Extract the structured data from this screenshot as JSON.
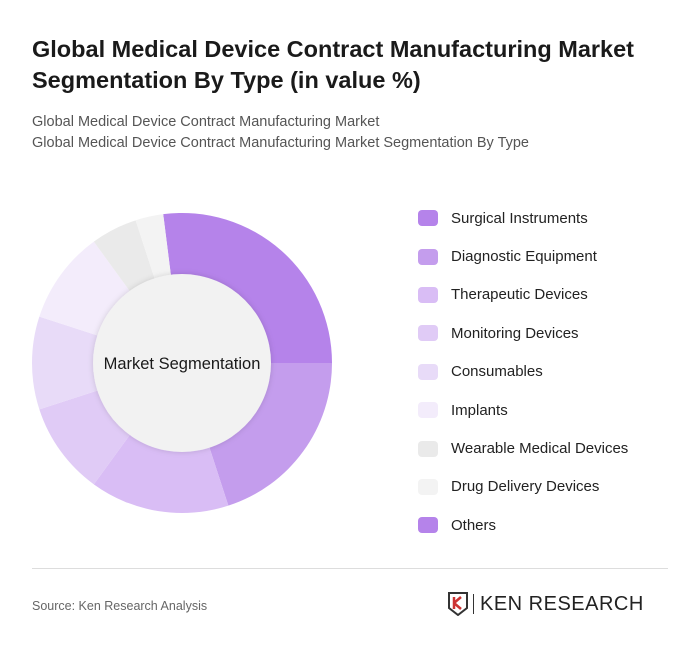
{
  "title": "Global Medical Device Contract Manufacturing Market Segmentation By Type (in value %)",
  "subtitle1": "Global Medical Device Contract Manufacturing Market",
  "subtitle2": "Global Medical Device Contract Manufacturing Market Segmentation By Type",
  "source": "Source: Ken Research Analysis",
  "logo_text": "KEN RESEARCH",
  "chart_data": {
    "type": "pie",
    "variant": "donut",
    "center_label": "Market Segmentation",
    "legend_position": "right",
    "categories": [
      "Surgical Instruments",
      "Diagnostic Equipment",
      "Therapeutic Devices",
      "Monitoring Devices",
      "Consumables",
      "Implants",
      "Wearable Medical Devices",
      "Drug Delivery Devices",
      "Others"
    ],
    "values": [
      27,
      20,
      15,
      10,
      10,
      10,
      5,
      3,
      0
    ],
    "colors": [
      "#b583ea",
      "#c49ded",
      "#d9bdf5",
      "#e0cbf6",
      "#e8dbf8",
      "#f3ecfb",
      "#eaeaea",
      "#f3f3f3",
      "#b583ea"
    ]
  }
}
